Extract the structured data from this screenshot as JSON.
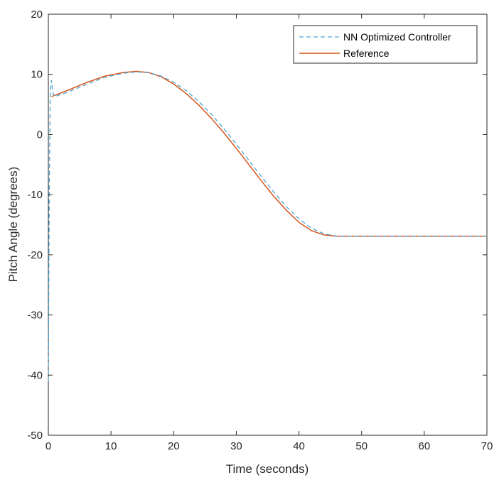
{
  "chart_data": {
    "type": "line",
    "xlabel": "Time (seconds)",
    "ylabel": "Pitch Angle (degrees)",
    "xlim": [
      0,
      70
    ],
    "ylim": [
      -50,
      20
    ],
    "xticks": [
      "0",
      "10",
      "20",
      "30",
      "40",
      "50",
      "60",
      "70"
    ],
    "yticks": [
      "20",
      "10",
      "0",
      "-10",
      "-20",
      "-30",
      "-40",
      "-50"
    ],
    "grid": false,
    "legend_position": "top-right",
    "series": [
      {
        "name": "NN Optimized Controller",
        "color": "#4DA3CF",
        "style": "dashed",
        "x": [
          0,
          0.15,
          0.3,
          0.5,
          0.7,
          1,
          3,
          6,
          9,
          12,
          14,
          16,
          18,
          20,
          22,
          24,
          26,
          28,
          30,
          32,
          34,
          36,
          38,
          40,
          42,
          44,
          46,
          47,
          50,
          55,
          60,
          65,
          70
        ],
        "y": [
          -41,
          -10,
          7,
          9,
          7,
          6.3,
          7.0,
          8.3,
          9.5,
          10.2,
          10.4,
          10.3,
          9.7,
          8.7,
          7.3,
          5.5,
          3.4,
          1.0,
          -1.6,
          -4.3,
          -7.0,
          -9.6,
          -12.0,
          -14.0,
          -15.6,
          -16.5,
          -16.9,
          -16.9,
          -16.9,
          -16.9,
          -16.9,
          -16.9,
          -16.9
        ]
      },
      {
        "name": "Reference",
        "color": "#D95319",
        "style": "solid",
        "x": [
          0.5,
          1,
          3,
          6,
          9,
          12,
          14,
          16,
          18,
          20,
          22,
          24,
          26,
          28,
          30,
          32,
          34,
          36,
          38,
          40,
          42,
          44,
          46,
          46.8,
          50,
          55,
          60,
          65,
          70
        ],
        "y": [
          6.3,
          6.5,
          7.3,
          8.6,
          9.7,
          10.3,
          10.5,
          10.3,
          9.6,
          8.4,
          6.8,
          4.9,
          2.7,
          0.3,
          -2.3,
          -5.0,
          -7.7,
          -10.3,
          -12.6,
          -14.6,
          -16.0,
          -16.7,
          -16.9,
          -16.9,
          -16.9,
          -16.9,
          -16.9,
          -16.9,
          -16.9
        ]
      }
    ]
  }
}
